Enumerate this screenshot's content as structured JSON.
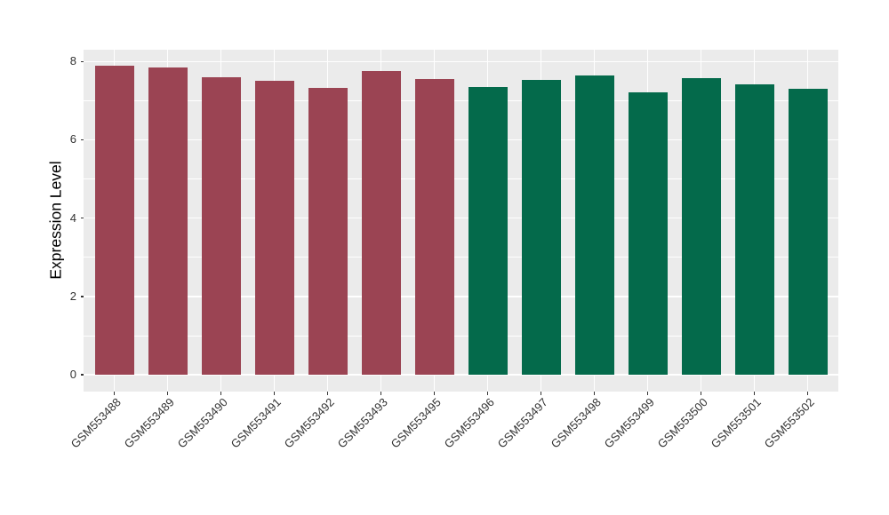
{
  "chart_data": {
    "type": "bar",
    "title": "",
    "xlabel": "",
    "ylabel": "Expression Level",
    "categories": [
      "GSM553488",
      "GSM553489",
      "GSM553490",
      "GSM553491",
      "GSM553492",
      "GSM553493",
      "GSM553495",
      "GSM553496",
      "GSM553497",
      "GSM553498",
      "GSM553499",
      "GSM553500",
      "GSM553501",
      "GSM553502"
    ],
    "values": [
      7.9,
      7.85,
      7.6,
      7.5,
      7.33,
      7.76,
      7.55,
      7.36,
      7.53,
      7.64,
      7.21,
      7.57,
      7.42,
      7.31
    ],
    "bar_colors": [
      "#9B4453",
      "#9B4453",
      "#9B4453",
      "#9B4453",
      "#9B4453",
      "#9B4453",
      "#9B4453",
      "#046A4B",
      "#046A4B",
      "#046A4B",
      "#046A4B",
      "#046A4B",
      "#046A4B",
      "#046A4B"
    ],
    "group_colors": {
      "left_group": "#9B4453",
      "right_group": "#046A4B"
    },
    "yticks": [
      0,
      2,
      4,
      6,
      8
    ],
    "yticks_minor": [
      1,
      3,
      5,
      7
    ],
    "ylim": [
      -0.41,
      8.3
    ],
    "grid": true,
    "legend": false,
    "x_label_angle": 45,
    "panel_background": "#EBEBEB",
    "gridline_color": "#FFFFFF",
    "tick_color": "#333333",
    "axis_text_color": "#333333",
    "axis_title_color": "#000000"
  }
}
